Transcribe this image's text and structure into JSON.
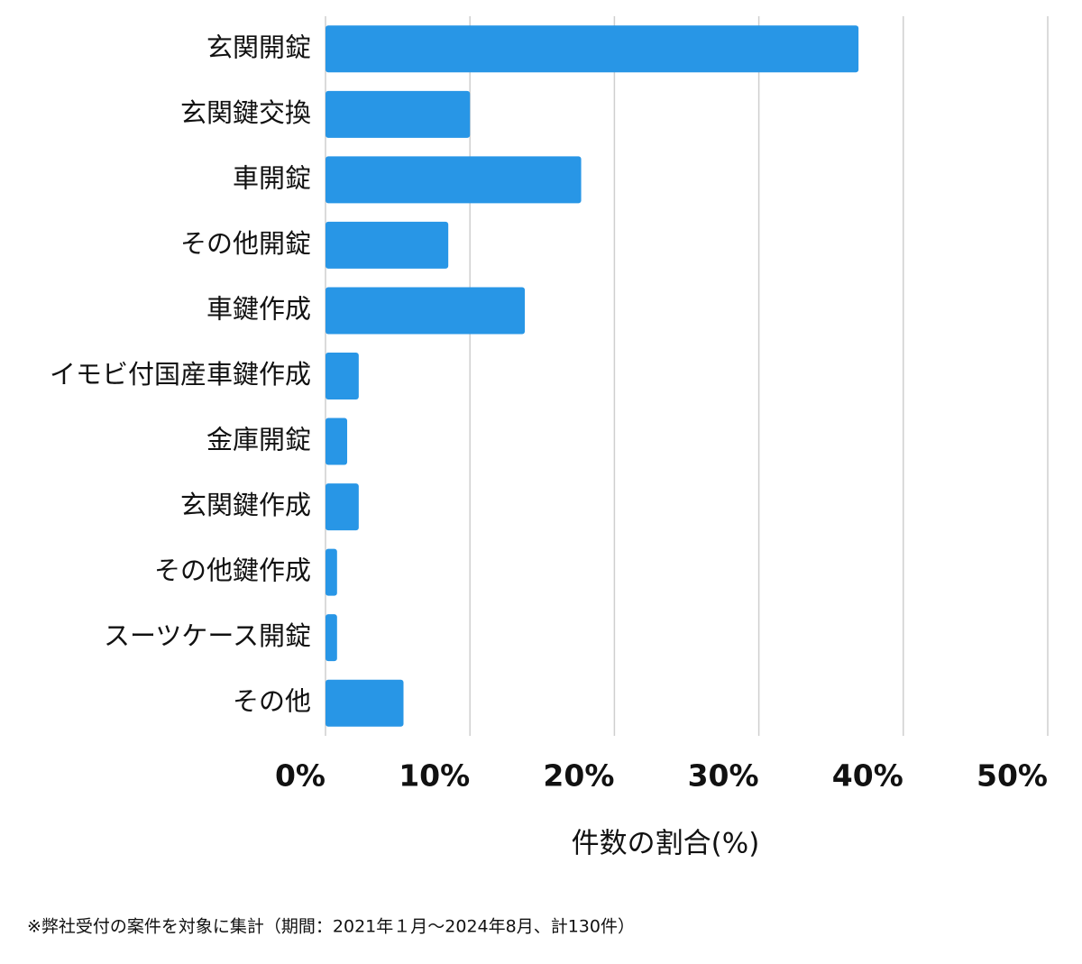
{
  "chart_data": {
    "type": "bar",
    "orientation": "horizontal",
    "categories": [
      "玄関開錠",
      "玄関鍵交換",
      "車開錠",
      "その他開錠",
      "車鍵作成",
      "イモビ付国産車鍵作成",
      "金庫開錠",
      "玄関鍵作成",
      "その他鍵作成",
      "スーツケース開錠",
      "その他"
    ],
    "values": [
      36.9,
      10.0,
      17.7,
      8.5,
      13.8,
      2.3,
      1.5,
      2.3,
      0.8,
      0.8,
      5.4
    ],
    "color": "#2896e6",
    "xlabel": "件数の割合(%)",
    "xlim": [
      0,
      50
    ],
    "xticks": [
      {
        "value": 0,
        "label": "0%"
      },
      {
        "value": 10,
        "label": "10%"
      },
      {
        "value": 20,
        "label": "20%"
      },
      {
        "value": 30,
        "label": "30%"
      },
      {
        "value": 40,
        "label": "40%"
      },
      {
        "value": 50,
        "label": "50%"
      }
    ],
    "grid": true,
    "footnote": "※弊社受付の案件を対象に集計（期間：2021年１月〜2024年8月、計130件）"
  }
}
